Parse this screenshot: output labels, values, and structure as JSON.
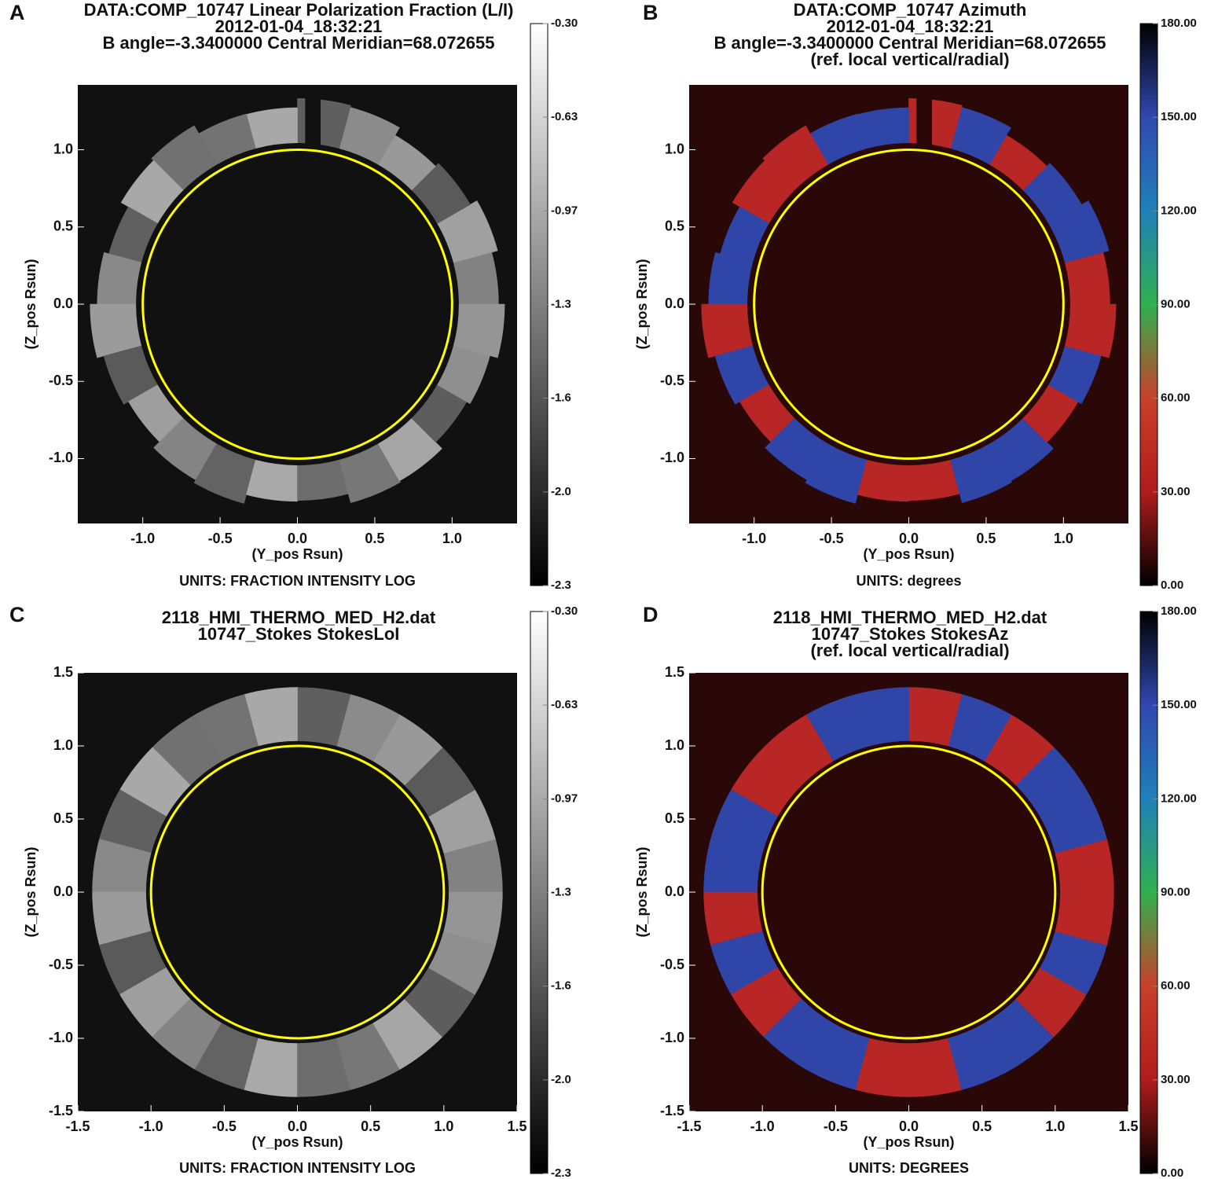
{
  "chart_data": [
    {
      "type": "image",
      "panel": "A",
      "title": [
        "DATA:COMP_10747 Linear Polarization Fraction (L/I)",
        "2012-01-04_18:32:21",
        "B angle=-3.3400000 Central Meridian=68.072655"
      ],
      "xlabel": "(Y_pos Rsun)",
      "ylabel": "(Z_pos Rsun)",
      "units": "UNITS: FRACTION INTENSITY LOG",
      "xlim": [
        -1.42,
        1.42
      ],
      "ylim": [
        -1.42,
        1.42
      ],
      "xticks": [
        {
          "value": -1,
          "label": "-1.0"
        },
        -0.5,
        {
          "value": 0,
          "label": "0.0"
        },
        0.5,
        {
          "value": 1,
          "label": "1.0"
        }
      ],
      "yticks": [
        {
          "value": -1,
          "label": "-1.0"
        },
        -0.5,
        {
          "value": 0,
          "label": "0.0"
        },
        0.5,
        {
          "value": 1,
          "label": "1.0"
        }
      ],
      "background": "#111111",
      "colorbar": {
        "lim": [
          -2.3,
          -0.3
        ],
        "colormap": [
          "#000000",
          "#ffffff"
        ],
        "ticks": [
          {
            "value": -2.3,
            "label": "-2.3"
          },
          {
            "value": -1.967,
            "label": "-2.0"
          },
          {
            "value": -1.633,
            "label": "-1.6"
          },
          {
            "value": -1.3,
            "label": "-1.3"
          },
          {
            "value": -0.967,
            "label": "-0.97"
          },
          {
            "value": -0.633,
            "label": "-0.63"
          },
          {
            "value": -0.3,
            "label": "-0.30"
          }
        ]
      }
    },
    {
      "type": "image",
      "panel": "B",
      "title": [
        "DATA:COMP_10747 Azimuth",
        "2012-01-04_18:32:21",
        "B angle=-3.3400000 Central Meridian=68.072655",
        "(ref. local vertical/radial)"
      ],
      "xlabel": "(Y_pos Rsun)",
      "ylabel": "(Z_pos Rsun)",
      "units": "UNITS: degrees",
      "xlim": [
        -1.42,
        1.42
      ],
      "ylim": [
        -1.42,
        1.42
      ],
      "xticks": [
        {
          "value": -1,
          "label": "-1.0"
        },
        -0.5,
        {
          "value": 0,
          "label": "0.0"
        },
        0.5,
        {
          "value": 1,
          "label": "1.0"
        }
      ],
      "yticks": [
        {
          "value": -1,
          "label": "-1.0"
        },
        -0.5,
        {
          "value": 0,
          "label": "0.0"
        },
        0.5,
        {
          "value": 1,
          "label": "1.0"
        }
      ],
      "background": "#2a0808",
      "colorbar": {
        "lim": [
          0,
          180
        ],
        "colormap": [
          "#000000",
          "#b01c1c",
          "#c8402a",
          "#30b050",
          "#2080b8",
          "#3048b0",
          "#000000"
        ],
        "ticks": [
          {
            "value": 0,
            "label": "0.00"
          },
          {
            "value": 30,
            "label": "30.00"
          },
          {
            "value": 60,
            "label": "60.00"
          },
          {
            "value": 90,
            "label": "90.00"
          },
          {
            "value": 120,
            "label": "120.00"
          },
          {
            "value": 150,
            "label": "150.00"
          },
          {
            "value": 180,
            "label": "180.00"
          }
        ]
      }
    },
    {
      "type": "image",
      "panel": "C",
      "title": [
        "2118_HMI_THERMO_MED_H2.dat",
        "10747_Stokes StokesLoI"
      ],
      "xlabel": "(Y_pos Rsun)",
      "ylabel": "(Z_pos Rsun)",
      "units": "UNITS: FRACTION INTENSITY LOG",
      "xlim": [
        -1.5,
        1.5
      ],
      "ylim": [
        -1.5,
        1.5
      ],
      "xticks": [
        -1.5,
        {
          "value": -1,
          "label": "-1.0"
        },
        -0.5,
        {
          "value": 0,
          "label": "0.0"
        },
        0.5,
        {
          "value": 1,
          "label": "1.0"
        },
        1.5
      ],
      "yticks": [
        -1.5,
        {
          "value": -1,
          "label": "-1.0"
        },
        -0.5,
        {
          "value": 0,
          "label": "0.0"
        },
        0.5,
        {
          "value": 1,
          "label": "1.0"
        },
        1.5
      ],
      "background": "#111111",
      "colorbar": {
        "lim": [
          -2.3,
          -0.3
        ],
        "colormap": [
          "#000000",
          "#ffffff"
        ],
        "ticks": [
          {
            "value": -2.3,
            "label": "-2.3"
          },
          {
            "value": -1.967,
            "label": "-2.0"
          },
          {
            "value": -1.633,
            "label": "-1.6"
          },
          {
            "value": -1.3,
            "label": "-1.3"
          },
          {
            "value": -0.967,
            "label": "-0.97"
          },
          {
            "value": -0.633,
            "label": "-0.63"
          },
          {
            "value": -0.3,
            "label": "-0.30"
          }
        ]
      }
    },
    {
      "type": "image",
      "panel": "D",
      "title": [
        "2118_HMI_THERMO_MED_H2.dat",
        "10747_Stokes StokesAz",
        "(ref. local vertical/radial)"
      ],
      "xlabel": "(Y_pos Rsun)",
      "ylabel": "(Z_pos Rsun)",
      "units": "UNITS: DEGREES",
      "xlim": [
        -1.5,
        1.5
      ],
      "ylim": [
        -1.5,
        1.5
      ],
      "xticks": [
        -1.5,
        {
          "value": -1,
          "label": "-1.0"
        },
        -0.5,
        {
          "value": 0,
          "label": "0.0"
        },
        0.5,
        {
          "value": 1,
          "label": "1.0"
        },
        1.5
      ],
      "yticks": [
        -1.5,
        {
          "value": -1,
          "label": "-1.0"
        },
        -0.5,
        {
          "value": 0,
          "label": "0.0"
        },
        0.5,
        {
          "value": 1,
          "label": "1.0"
        },
        1.5
      ],
      "background": "#2a0808",
      "colorbar": {
        "lim": [
          0,
          180
        ],
        "colormap": [
          "#000000",
          "#b01c1c",
          "#c8402a",
          "#30b050",
          "#2080b8",
          "#3048b0",
          "#000000"
        ],
        "ticks": [
          {
            "value": 0,
            "label": "0.00"
          },
          {
            "value": 30,
            "label": "30.00"
          },
          {
            "value": 60,
            "label": "60.00"
          },
          {
            "value": 90,
            "label": "90.00"
          },
          {
            "value": 120,
            "label": "120.00"
          },
          {
            "value": 150,
            "label": "150.00"
          },
          {
            "value": 180,
            "label": "180.00"
          }
        ]
      }
    }
  ]
}
